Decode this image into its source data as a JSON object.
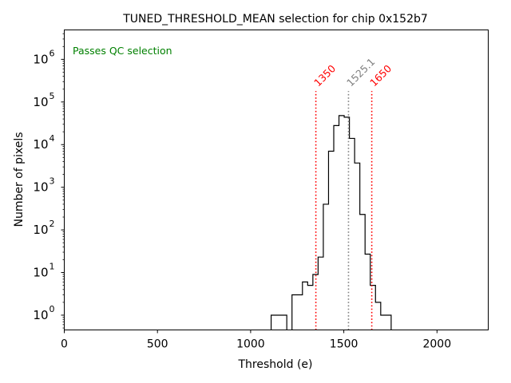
{
  "chart_data": {
    "type": "histogram",
    "title": "TUNED_THRESHOLD_MEAN selection for chip 0x152b7",
    "xlabel": "Threshold (e)",
    "ylabel": "Number of pixels",
    "xlim": [
      0,
      2275
    ],
    "ylim": [
      0.45,
      4900000
    ],
    "yscale": "log",
    "x_ticks": [
      0,
      500,
      1000,
      1500,
      2000
    ],
    "x_tick_labels": [
      "0",
      "500",
      "1000",
      "1500",
      "2000"
    ],
    "y_ticks": [
      1,
      10,
      100,
      1000,
      10000,
      100000,
      1000000
    ],
    "y_tick_bases": [
      "10",
      "10",
      "10",
      "10",
      "10",
      "10",
      "10"
    ],
    "y_tick_exps": [
      "0",
      "1",
      "2",
      "3",
      "4",
      "5",
      "6"
    ],
    "annotation": "Passes QC selection",
    "annotation_color": "#008000",
    "histogram": {
      "bin_edges": [
        1110,
        1138,
        1166,
        1194,
        1222,
        1250,
        1278,
        1306,
        1334,
        1362,
        1390,
        1418,
        1446,
        1474,
        1502,
        1530,
        1558,
        1586,
        1614,
        1642,
        1670,
        1698,
        1726,
        1754,
        1782
      ],
      "counts": [
        1,
        1,
        1,
        0,
        3,
        3,
        6,
        5,
        9,
        23,
        400,
        7000,
        28000,
        48000,
        44000,
        14000,
        3700,
        230,
        27,
        5,
        2,
        1,
        1,
        0
      ]
    },
    "threshold_lines": [
      {
        "value": 1350,
        "label": "1350",
        "color": "#ff0000"
      },
      {
        "value": 1525.1,
        "label": "1525.1",
        "color": "#808080"
      },
      {
        "value": 1650,
        "label": "1650",
        "color": "#ff0000"
      }
    ]
  }
}
